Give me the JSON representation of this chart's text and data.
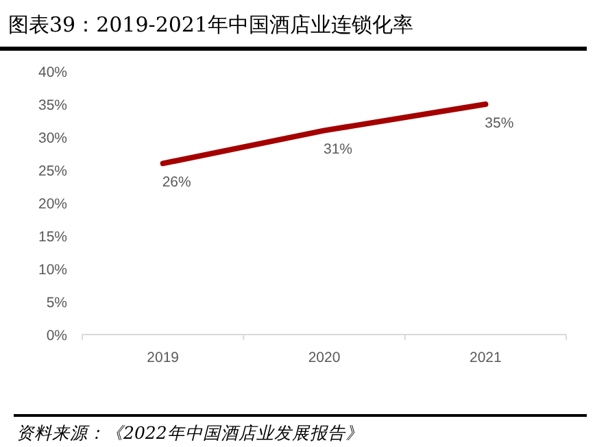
{
  "chart_data": {
    "type": "line",
    "title": "图表39：2019-2021年中国酒店业连锁化率",
    "categories": [
      "2019",
      "2020",
      "2021"
    ],
    "series": [
      {
        "color": "#a50000",
        "values": [
          26,
          31,
          35
        ],
        "value_labels": [
          "26%",
          "31%",
          "35%"
        ]
      }
    ],
    "ylim": [
      0,
      40
    ],
    "yticks": [
      {
        "value": 0,
        "label": "0%"
      },
      {
        "value": 5,
        "label": "5%"
      },
      {
        "value": 10,
        "label": "10%"
      },
      {
        "value": 15,
        "label": "15%"
      },
      {
        "value": 20,
        "label": "20%"
      },
      {
        "value": 25,
        "label": "25%"
      },
      {
        "value": 30,
        "label": "30%"
      },
      {
        "value": 35,
        "label": "35%"
      },
      {
        "value": 40,
        "label": "40%"
      }
    ],
    "grid": false,
    "marker": "none",
    "line_style": "solid",
    "annotations": [
      "资料来源：《2022年中国酒店业发展报告》"
    ]
  }
}
